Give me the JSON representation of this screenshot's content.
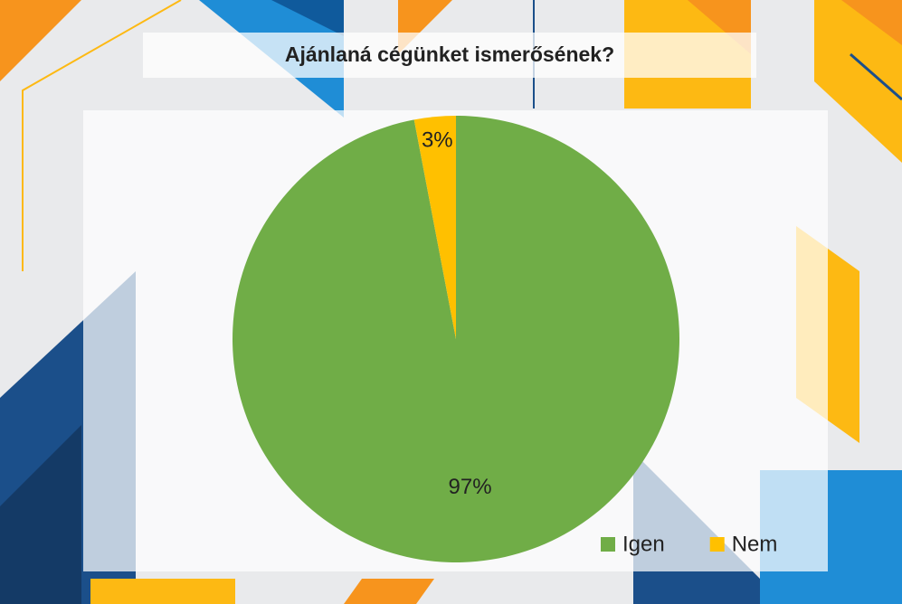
{
  "chart_data": {
    "type": "pie",
    "title": "Ajánlaná cégünket ismerősének?",
    "categories": [
      "Igen",
      "Nem"
    ],
    "values": [
      97,
      3
    ],
    "value_labels": [
      "97%",
      "3%"
    ],
    "colors": [
      "#70ad47",
      "#ffc000"
    ],
    "legend": "bottom-right"
  }
}
